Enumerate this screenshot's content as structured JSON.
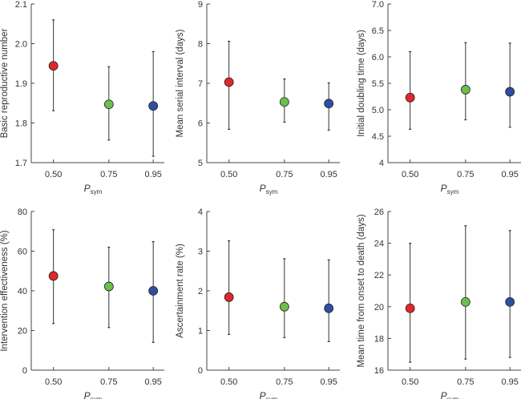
{
  "colors": {
    "0.50": "#e3262c",
    "0.75": "#6cbf4a",
    "0.95": "#2f4ea2",
    "axis": "#444444",
    "errorbar": "#333333"
  },
  "chart_data": [
    {
      "type": "scatter",
      "ylabel": "Basic reproductive number",
      "xlabel": "P",
      "xlabel_sub": "sym",
      "categories": [
        "0.50",
        "0.75",
        "0.95"
      ],
      "x": [
        0.5,
        0.75,
        0.95
      ],
      "xlim": [
        0.4,
        1.0
      ],
      "yticks": [
        "1.7",
        "1.8",
        "1.9",
        "2.0",
        "2.1"
      ],
      "ylim": [
        1.7,
        2.1
      ],
      "values": [
        1.944,
        1.847,
        1.843
      ],
      "lower": [
        1.831,
        1.757,
        1.716
      ],
      "upper": [
        2.06,
        1.942,
        1.98
      ]
    },
    {
      "type": "scatter",
      "ylabel": "Mean serial interval (days)",
      "xlabel": "P",
      "xlabel_sub": "sym",
      "categories": [
        "0.50",
        "0.75",
        "0.95"
      ],
      "x": [
        0.5,
        0.75,
        0.95
      ],
      "xlim": [
        0.4,
        1.0
      ],
      "yticks": [
        "5",
        "6",
        "7",
        "8",
        "9"
      ],
      "ylim": [
        5,
        9
      ],
      "values": [
        7.03,
        6.53,
        6.49
      ],
      "lower": [
        5.84,
        6.02,
        5.82
      ],
      "upper": [
        8.06,
        7.11,
        7.01
      ]
    },
    {
      "type": "scatter",
      "ylabel": "Initial doubling time (days)",
      "xlabel": "P",
      "xlabel_sub": "sym",
      "categories": [
        "0.50",
        "0.75",
        "0.95"
      ],
      "x": [
        0.5,
        0.75,
        0.95
      ],
      "xlim": [
        0.4,
        1.0
      ],
      "yticks": [
        "4",
        "4.5",
        "5.0",
        "5.5",
        "6.0",
        "6.5",
        "7.0"
      ],
      "ylim": [
        4,
        7
      ],
      "values": [
        5.23,
        5.38,
        5.34
      ],
      "lower": [
        4.63,
        4.81,
        4.67
      ],
      "upper": [
        6.1,
        6.27,
        6.26
      ]
    },
    {
      "type": "scatter",
      "ylabel": "Intervention effectiveness (%)",
      "xlabel": "P",
      "xlabel_sub": "sym",
      "categories": [
        "0.50",
        "0.75",
        "0.95"
      ],
      "x": [
        0.5,
        0.75,
        0.95
      ],
      "xlim": [
        0.4,
        1.0
      ],
      "yticks": [
        "0",
        "20",
        "40",
        "60",
        "80"
      ],
      "ylim": [
        0,
        80
      ],
      "values": [
        47.5,
        42.2,
        40.0
      ],
      "lower": [
        23.5,
        21.5,
        14.0
      ],
      "upper": [
        70.8,
        62.0,
        64.8
      ]
    },
    {
      "type": "scatter",
      "ylabel": "Ascertainment rate (%)",
      "xlabel": "P",
      "xlabel_sub": "sym",
      "categories": [
        "0.50",
        "0.75",
        "0.95"
      ],
      "x": [
        0.5,
        0.75,
        0.95
      ],
      "xlim": [
        0.4,
        1.0
      ],
      "yticks": [
        "0",
        "1",
        "2",
        "3",
        "4"
      ],
      "ylim": [
        0,
        4
      ],
      "values": [
        1.84,
        1.6,
        1.56
      ],
      "lower": [
        0.9,
        0.82,
        0.72
      ],
      "upper": [
        3.26,
        2.81,
        2.78
      ]
    },
    {
      "type": "scatter",
      "ylabel": "Mean time from onset to death (days)",
      "xlabel": "P",
      "xlabel_sub": "sym",
      "categories": [
        "0.50",
        "0.75",
        "0.95"
      ],
      "x": [
        0.5,
        0.75,
        0.95
      ],
      "xlim": [
        0.4,
        1.0
      ],
      "yticks": [
        "16",
        "18",
        "20",
        "22",
        "24",
        "26"
      ],
      "ylim": [
        16,
        26
      ],
      "values": [
        19.9,
        20.3,
        20.3
      ],
      "lower": [
        16.5,
        16.7,
        16.8
      ],
      "upper": [
        24.0,
        25.1,
        24.8
      ]
    }
  ]
}
